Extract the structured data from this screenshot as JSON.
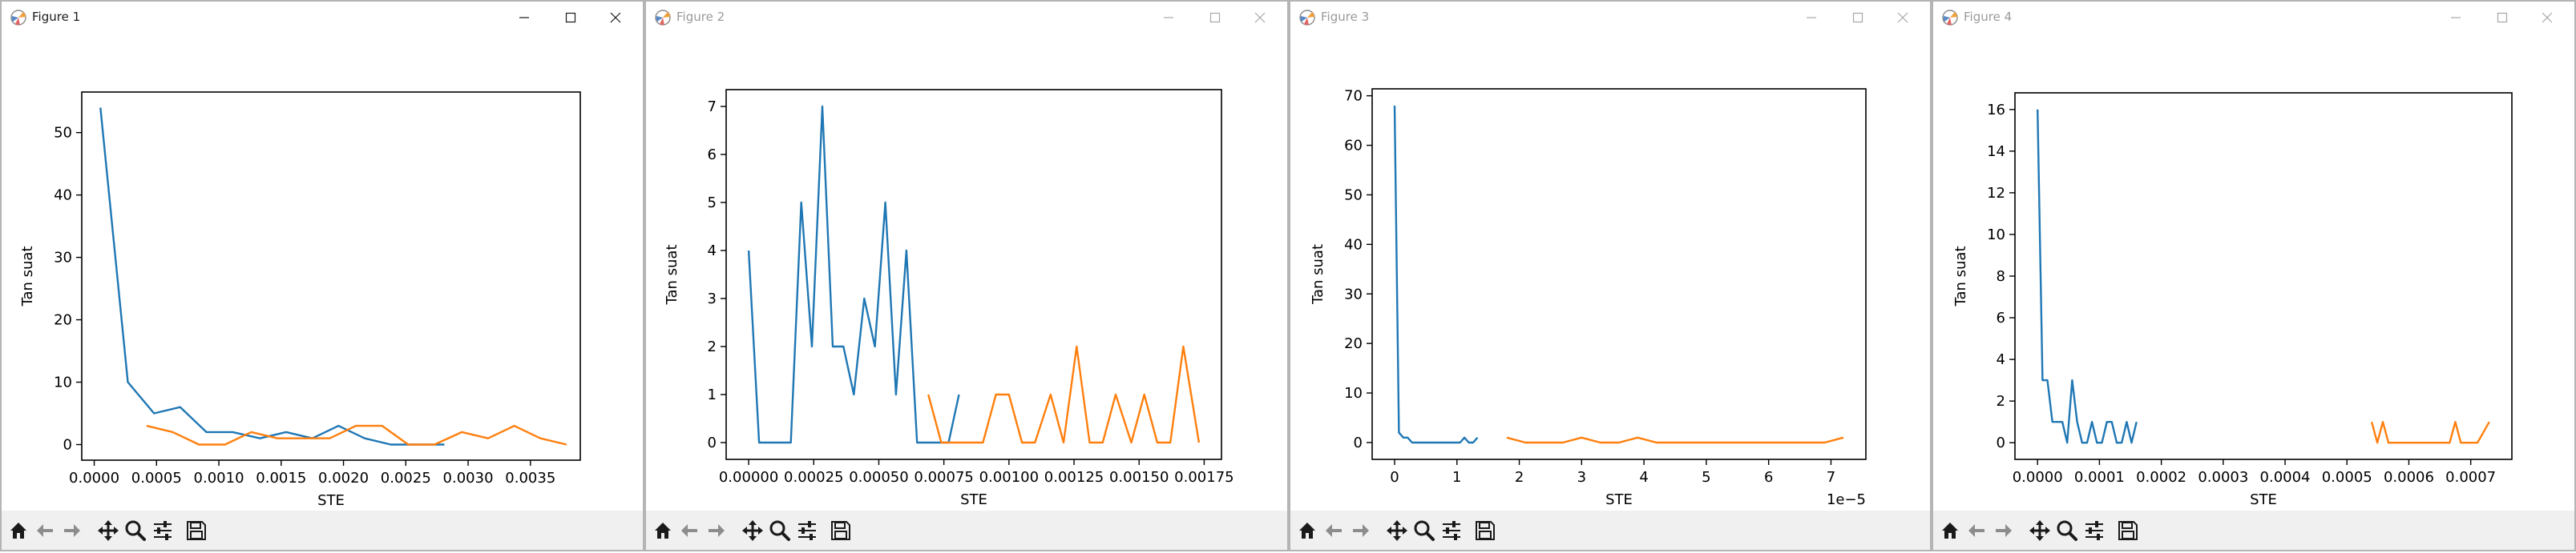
{
  "windows": [
    {
      "title": "Figure 1",
      "active": true
    },
    {
      "title": "Figure 2",
      "active": false
    },
    {
      "title": "Figure 3",
      "active": false
    },
    {
      "title": "Figure 4",
      "active": false
    }
  ],
  "colors": {
    "series1": "#1f77b4",
    "series2": "#ff7f0e",
    "toolbar": "#f0f0f0"
  },
  "toolbar_icons": [
    "home-icon",
    "back-arrow-icon",
    "forward-arrow-icon",
    "pan-icon",
    "zoom-icon",
    "configure-subplots-icon",
    "save-icon"
  ],
  "chart_data": [
    {
      "type": "line",
      "xlabel": "STE",
      "ylabel": "Tan suat",
      "xlim": [
        -0.0001,
        0.0039
      ],
      "ylim": [
        -2.5,
        56.5
      ],
      "xticks": [
        0,
        0.0005,
        0.001,
        0.0015,
        0.002,
        0.0025,
        0.003,
        0.0035
      ],
      "xticklabels": [
        "0.0000",
        "0.0005",
        "0.0010",
        "0.0015",
        "0.0020",
        "0.0025",
        "0.0030",
        "0.0035"
      ],
      "yticks": [
        0,
        10,
        20,
        30,
        40,
        50
      ],
      "yticklabels": [
        "0",
        "10",
        "20",
        "30",
        "40",
        "50"
      ],
      "offset_label": "",
      "series": [
        {
          "x": [
            5e-05,
            0.00027,
            0.00048,
            0.00069,
            0.0009,
            0.00111,
            0.00133,
            0.00154,
            0.00175,
            0.00196,
            0.00217,
            0.00238,
            0.0026,
            0.00281
          ],
          "y": [
            54,
            10,
            5,
            6,
            2,
            2,
            1,
            2,
            1,
            3,
            1,
            0,
            0,
            0
          ]
        },
        {
          "x": [
            0.00042,
            0.00063,
            0.00084,
            0.00105,
            0.00126,
            0.00147,
            0.00168,
            0.00189,
            0.0021,
            0.00231,
            0.00252,
            0.00273,
            0.00295,
            0.00316,
            0.00337,
            0.00358,
            0.00379
          ],
          "y": [
            3,
            2,
            0,
            0,
            2,
            1,
            1,
            1,
            3,
            3,
            0,
            0,
            2,
            1,
            3,
            1,
            0
          ]
        }
      ]
    },
    {
      "type": "line",
      "xlabel": "STE",
      "ylabel": "Tan suat",
      "xlim": [
        -8.65e-05,
        0.0018165
      ],
      "ylim": [
        -0.35,
        7.35
      ],
      "xticks": [
        0,
        0.00025,
        0.0005,
        0.00075,
        0.001,
        0.00125,
        0.0015,
        0.00175
      ],
      "xticklabels": [
        "0.00000",
        "0.00025",
        "0.00050",
        "0.00075",
        "0.00100",
        "0.00125",
        "0.00150",
        "0.00175"
      ],
      "yticks": [
        0,
        1,
        2,
        3,
        4,
        5,
        6,
        7
      ],
      "yticklabels": [
        "0",
        "1",
        "2",
        "3",
        "4",
        "5",
        "6",
        "7"
      ],
      "offset_label": "",
      "series": [
        {
          "x": [
            0.0,
            4e-05,
            8.1e-05,
            0.000121,
            0.000162,
            0.000202,
            0.000243,
            0.000283,
            0.000323,
            0.000364,
            0.000404,
            0.000444,
            0.000485,
            0.000525,
            0.000566,
            0.000606,
            0.000647,
            0.000687,
            0.000727,
            0.000768,
            0.000808
          ],
          "y": [
            4,
            0,
            0,
            0,
            0,
            5,
            2,
            7,
            2,
            2,
            1,
            3,
            2,
            5,
            1,
            4,
            0,
            0,
            0,
            0,
            1
          ]
        },
        {
          "x": [
            0.00069,
            0.00074,
            0.00079,
            0.00084,
            0.0009,
            0.00095,
            0.001,
            0.00105,
            0.0011,
            0.00116,
            0.00121,
            0.00126,
            0.00131,
            0.00136,
            0.00141,
            0.00147,
            0.00152,
            0.00157,
            0.00162,
            0.00167,
            0.00173
          ],
          "y": [
            1,
            0,
            0,
            0,
            0,
            1,
            1,
            0,
            0,
            1,
            0,
            2,
            0,
            0,
            1,
            0,
            1,
            0,
            0,
            2,
            0
          ]
        }
      ]
    },
    {
      "type": "line",
      "xlabel": "STE",
      "ylabel": "Tan suat",
      "xlim": [
        -3.6e-06,
        7.56e-05
      ],
      "ylim": [
        -3.4,
        71.4
      ],
      "xticks": [
        0,
        1e-05,
        2e-05,
        3e-05,
        4e-05,
        5e-05,
        6e-05,
        7e-05
      ],
      "xticklabels": [
        "0",
        "1",
        "2",
        "3",
        "4",
        "5",
        "6",
        "7"
      ],
      "yticks": [
        0,
        10,
        20,
        30,
        40,
        50,
        60,
        70
      ],
      "yticklabels": [
        "0",
        "10",
        "20",
        "30",
        "40",
        "50",
        "60",
        "70"
      ],
      "offset_label": "1e−5",
      "series": [
        {
          "x": [
            0.0,
            7e-07,
            1.4e-06,
            2.1e-06,
            2.8e-06,
            3.5e-06,
            4.2e-06,
            4.9e-06,
            5.6e-06,
            6.3e-06,
            7e-06,
            7.7e-06,
            8.4e-06,
            9.1e-06,
            9.8e-06,
            1.05e-05,
            1.12e-05,
            1.19e-05,
            1.26e-05,
            1.33e-05
          ],
          "y": [
            68,
            2,
            1,
            1,
            0,
            0,
            0,
            0,
            0,
            0,
            0,
            0,
            0,
            0,
            0,
            0,
            1,
            0,
            0,
            1
          ]
        },
        {
          "x": [
            1.8e-05,
            2.1e-05,
            2.4e-05,
            2.7e-05,
            3e-05,
            3.3e-05,
            3.6e-05,
            3.9e-05,
            4.2e-05,
            4.5e-05,
            4.8e-05,
            5.1e-05,
            5.4e-05,
            5.7e-05,
            6e-05,
            6.3e-05,
            6.6e-05,
            6.9e-05,
            7.2e-05
          ],
          "y": [
            1,
            0,
            0,
            0,
            1,
            0,
            0,
            1,
            0,
            0,
            0,
            0,
            0,
            0,
            0,
            0,
            0,
            0,
            1
          ]
        }
      ]
    },
    {
      "type": "line",
      "xlabel": "STE",
      "ylabel": "Tan suat",
      "xlim": [
        -3.65e-05,
        0.0007665
      ],
      "ylim": [
        -0.8,
        16.8
      ],
      "xticks": [
        0,
        0.0001,
        0.0002,
        0.0003,
        0.0004,
        0.0005,
        0.0006,
        0.0007
      ],
      "xticklabels": [
        "0.0000",
        "0.0001",
        "0.0002",
        "0.0003",
        "0.0004",
        "0.0005",
        "0.0006",
        "0.0007"
      ],
      "yticks": [
        0,
        2,
        4,
        6,
        8,
        10,
        12,
        14,
        16
      ],
      "yticklabels": [
        "0",
        "2",
        "4",
        "6",
        "8",
        "10",
        "12",
        "14",
        "16"
      ],
      "offset_label": "",
      "series": [
        {
          "x": [
            0.0,
            8e-06,
            1.6e-05,
            2.4e-05,
            3.2e-05,
            4e-05,
            4.8e-05,
            5.6e-05,
            6.4e-05,
            7.2e-05,
            8e-05,
            8.8e-05,
            9.6e-05,
            0.000104,
            0.000112,
            0.00012,
            0.000128,
            0.000136,
            0.000144,
            0.000152,
            0.00016
          ],
          "y": [
            16,
            3,
            3,
            1,
            1,
            1,
            0,
            3,
            1,
            0,
            0,
            1,
            0,
            0,
            1,
            1,
            0,
            0,
            1,
            0,
            1
          ]
        },
        {
          "x": [
            0.00054,
            0.000549,
            0.000558,
            0.000567,
            0.000576,
            0.000585,
            0.000594,
            0.000603,
            0.000612,
            0.000621,
            0.00063,
            0.000639,
            0.000648,
            0.000657,
            0.000666,
            0.000675,
            0.000684,
            0.000693,
            0.000702,
            0.000711,
            0.00073
          ],
          "y": [
            1,
            0,
            1,
            0,
            0,
            0,
            0,
            0,
            0,
            0,
            0,
            0,
            0,
            0,
            0,
            1,
            0,
            0,
            0,
            0,
            1
          ]
        }
      ]
    }
  ]
}
